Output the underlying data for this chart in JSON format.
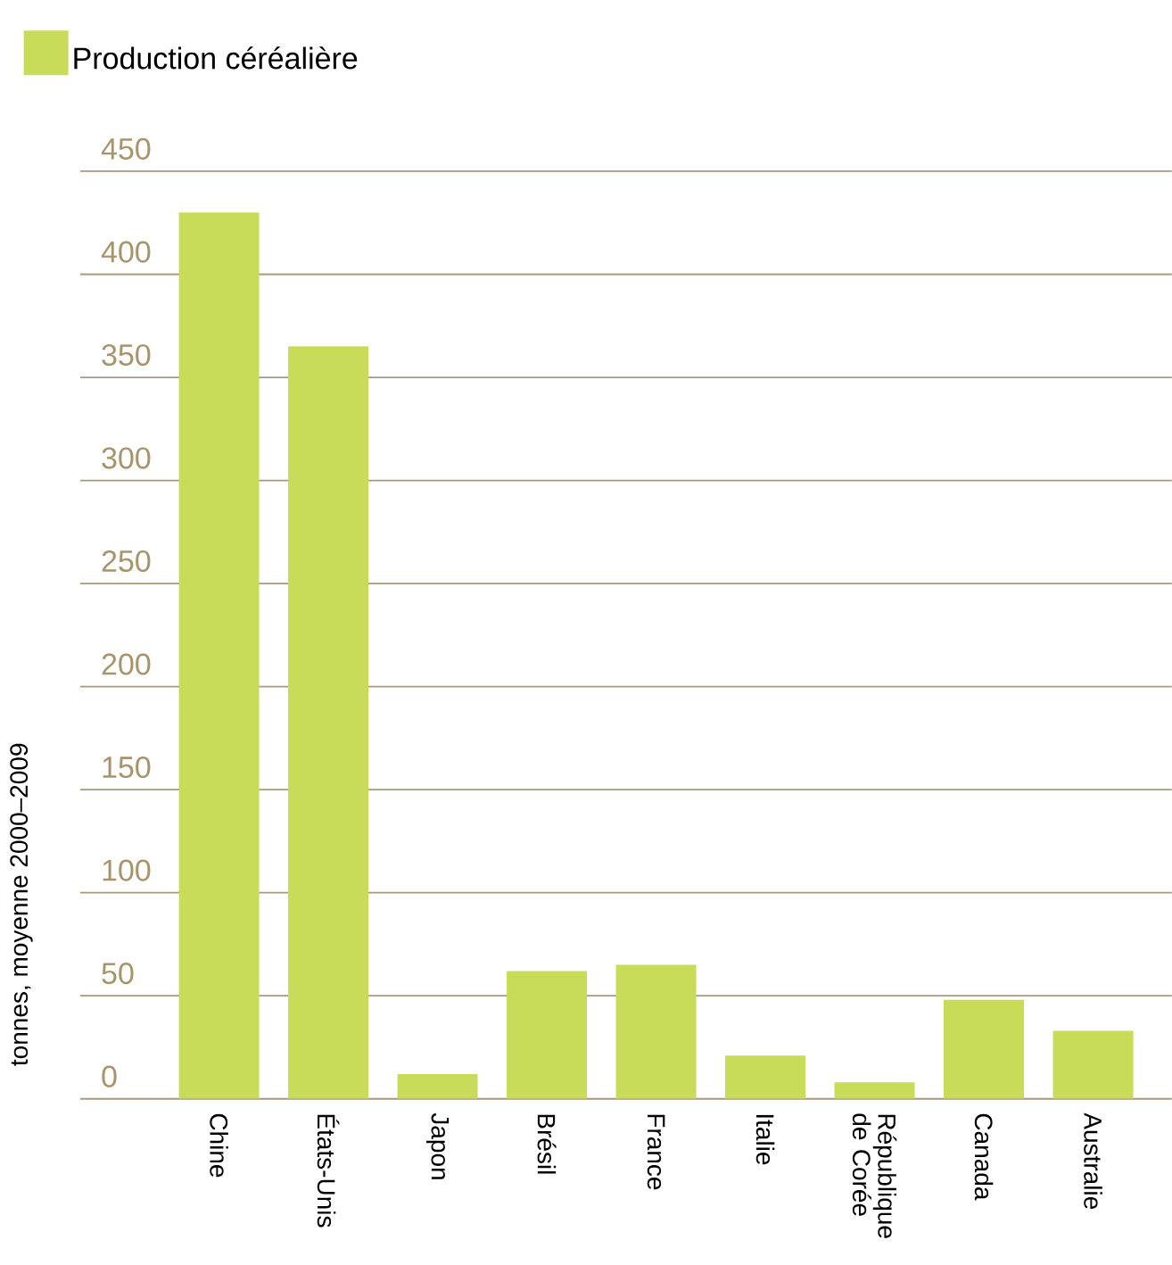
{
  "chart_data": {
    "type": "bar",
    "categories": [
      "Chine",
      "États-Unis",
      "Japon",
      "Brésil",
      "France",
      "Italie",
      "République de Corée",
      "Canada",
      "Australie"
    ],
    "series": [
      {
        "name": "Production céréalière",
        "color": "#c8dc5a",
        "values": [
          430,
          365,
          12,
          62,
          65,
          21,
          8,
          48,
          33
        ]
      }
    ],
    "ylabel": "tonnes, moyenne 2000–2009",
    "ylim": [
      0,
      450
    ],
    "yticks": [
      0,
      50,
      100,
      150,
      200,
      250,
      300,
      350,
      400,
      450
    ],
    "grid": "y",
    "legend": "top left"
  }
}
